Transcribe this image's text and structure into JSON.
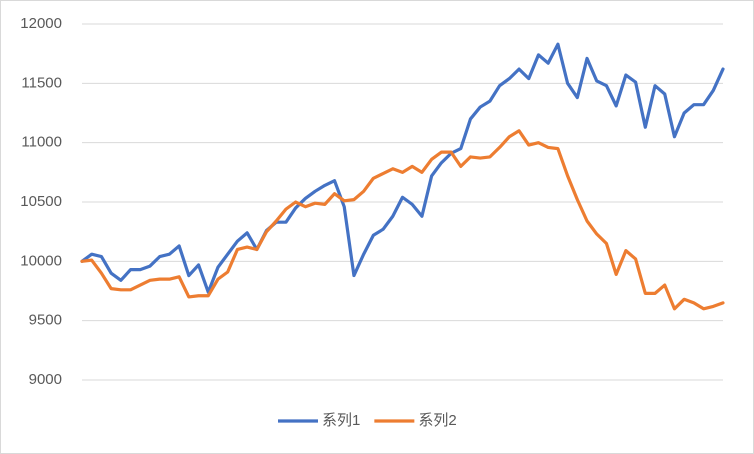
{
  "chart_data": {
    "type": "line",
    "categories": [
      null,
      null,
      null,
      null,
      null,
      null,
      null,
      null,
      null,
      null,
      null,
      null,
      null,
      null,
      null,
      null,
      null,
      null,
      null,
      null,
      null,
      null,
      null,
      null,
      null,
      null,
      null,
      null,
      null,
      null,
      null,
      null,
      null,
      null,
      null,
      null,
      null,
      null,
      null,
      null,
      null,
      null,
      null,
      null,
      null,
      null,
      null,
      null,
      null,
      null,
      null,
      null,
      null,
      null,
      null,
      null,
      null,
      null,
      null,
      null,
      null,
      null,
      null,
      null,
      null,
      null,
      null
    ],
    "series": [
      {
        "name": "系列1",
        "color": "#4472c4",
        "values": [
          10000,
          10060,
          10040,
          9900,
          9840,
          9930,
          9930,
          9960,
          10040,
          10060,
          10130,
          9880,
          9970,
          9740,
          9950,
          10060,
          10170,
          10240,
          10100,
          10260,
          10330,
          10330,
          10450,
          10530,
          10590,
          10640,
          10680,
          10460,
          9880,
          10060,
          10220,
          10270,
          10380,
          10540,
          10480,
          10380,
          10720,
          10830,
          10910,
          10950,
          11200,
          11300,
          11350,
          11480,
          11540,
          11620,
          11540,
          11740,
          11670,
          11830,
          11500,
          11380,
          11710,
          11520,
          11480,
          11310,
          11570,
          11510,
          11130,
          11480,
          11410,
          11050,
          11250,
          11320,
          11320,
          11440,
          11620
        ]
      },
      {
        "name": "系列2",
        "color": "#ed7d31",
        "values": [
          10000,
          10010,
          9900,
          9770,
          9760,
          9760,
          9800,
          9840,
          9850,
          9850,
          9870,
          9700,
          9710,
          9710,
          9850,
          9910,
          10100,
          10120,
          10100,
          10250,
          10340,
          10440,
          10500,
          10460,
          10490,
          10480,
          10570,
          10510,
          10520,
          10590,
          10700,
          10740,
          10780,
          10750,
          10800,
          10750,
          10860,
          10920,
          10920,
          10800,
          10880,
          10870,
          10880,
          10960,
          11050,
          11100,
          10980,
          11000,
          10960,
          10950,
          10720,
          10520,
          10340,
          10230,
          10150,
          9890,
          10090,
          10020,
          9730,
          9730,
          9800,
          9600,
          9680,
          9650,
          9600,
          9620,
          9650
        ]
      }
    ],
    "ylim": [
      9000,
      12000
    ],
    "yticks": [
      9000,
      9500,
      10000,
      10500,
      11000,
      11500,
      12000
    ],
    "grid": true,
    "legend": "bottom"
  }
}
